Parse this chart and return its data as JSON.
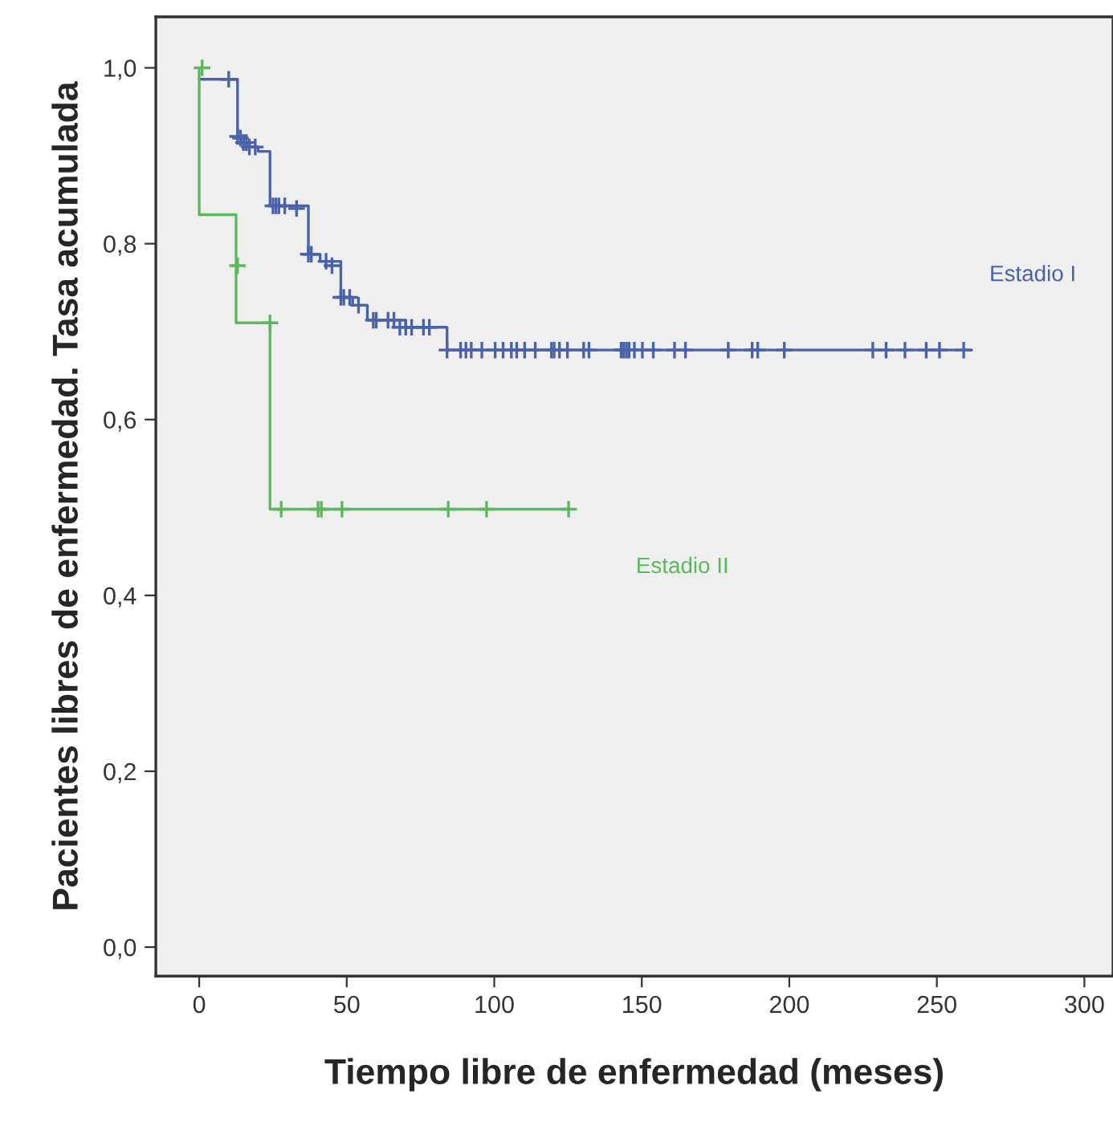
{
  "chart_data": {
    "type": "step",
    "xlabel": "Tiempo libre de enfermedad (meses)",
    "ylabel": "Pacientes libres de enfermedad. Tasa acumulada",
    "xlim": [
      -14.7,
      309.7
    ],
    "ylim": [
      -0.033,
      1.058
    ],
    "xticks": [
      0,
      50,
      100,
      150,
      200,
      250,
      300
    ],
    "yticks": [
      {
        "value": 0,
        "label": "0,0"
      },
      {
        "value": 0.2,
        "label": "0,2"
      },
      {
        "value": 0.4,
        "label": "0,4"
      },
      {
        "value": 0.6,
        "label": "0,6"
      },
      {
        "value": 0.8,
        "label": "0,8"
      },
      {
        "value": 1.0,
        "label": "1,0"
      }
    ],
    "grid": false,
    "legend": false,
    "series": [
      {
        "name": "Estadio I",
        "color": "#4a62a8",
        "x": [
          0,
          13,
          15,
          17,
          20,
          24,
          37,
          41,
          48,
          52,
          57,
          70,
          84,
          261.8
        ],
        "values": [
          0.987,
          0.922,
          0.915,
          0.91,
          0.905,
          0.843,
          0.788,
          0.78,
          0.739,
          0.73,
          0.713,
          0.705,
          0.679,
          0.679
        ]
      },
      {
        "name": "Estadio II",
        "color": "#5cb85c",
        "x": [
          0,
          0,
          12.5,
          24,
          125
        ],
        "values": [
          1.0,
          0.833,
          0.71,
          0.498,
          0.498
        ]
      },
      {
        "type": "scatter",
        "marker": "cross",
        "color": "#4a62a8",
        "x": [
          10,
          13,
          14,
          15,
          16,
          17,
          19,
          25,
          26,
          27,
          29,
          33,
          37,
          38,
          43,
          45,
          48,
          49,
          51,
          54,
          59,
          60,
          64,
          66,
          68,
          70,
          72,
          76,
          78,
          84,
          88.6,
          90.4,
          92.2,
          95.8,
          100.3,
          103,
          105.8,
          107.6,
          110.3,
          113.9,
          119.4,
          120.3,
          122.1,
          124.8,
          130.3,
          132.1,
          143,
          143.9,
          144.8,
          145.7,
          147.5,
          150.2,
          153.9,
          161.1,
          164.8,
          179.3,
          187.4,
          189.3,
          198.3,
          228.3,
          232.8,
          239.2,
          246.4,
          250.9,
          259.1
        ],
        "values": [
          0.987,
          0.922,
          0.92,
          0.915,
          0.915,
          0.91,
          0.91,
          0.843,
          0.843,
          0.843,
          0.843,
          0.84,
          0.788,
          0.788,
          0.78,
          0.775,
          0.739,
          0.739,
          0.739,
          0.73,
          0.713,
          0.713,
          0.713,
          0.713,
          0.705,
          0.705,
          0.705,
          0.705,
          0.705,
          0.679,
          0.679,
          0.679,
          0.679,
          0.679,
          0.679,
          0.679,
          0.679,
          0.679,
          0.679,
          0.679,
          0.679,
          0.679,
          0.679,
          0.679,
          0.679,
          0.679,
          0.679,
          0.679,
          0.679,
          0.679,
          0.679,
          0.679,
          0.679,
          0.679,
          0.679,
          0.679,
          0.679,
          0.679,
          0.679,
          0.679,
          0.679,
          0.679,
          0.679,
          0.679,
          0.679
        ]
      },
      {
        "type": "scatter",
        "marker": "cross",
        "color": "#5cb85c",
        "x": [
          1,
          13,
          24,
          27.8,
          40.3,
          41.4,
          48.4,
          84.4,
          97.4,
          125.2
        ],
        "values": [
          1.0,
          0.775,
          0.71,
          0.498,
          0.498,
          0.498,
          0.498,
          0.498,
          0.498,
          0.498
        ]
      }
    ]
  }
}
